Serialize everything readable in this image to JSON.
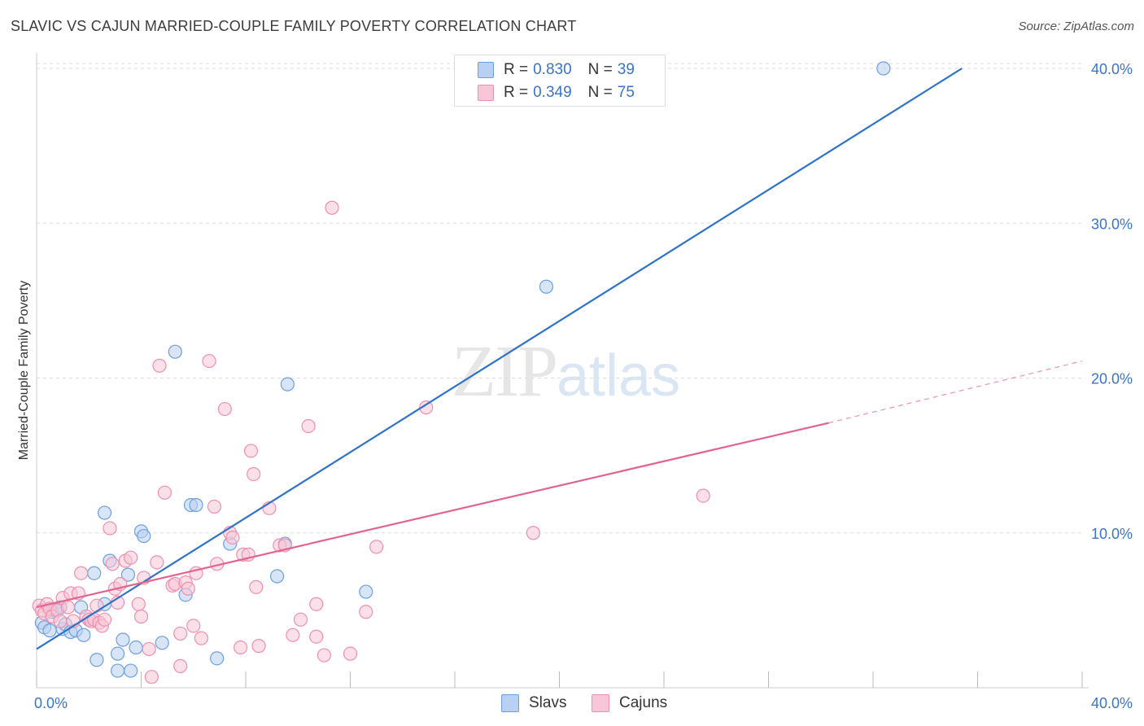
{
  "title": "SLAVIC VS CAJUN MARRIED-COUPLE FAMILY POVERTY CORRELATION CHART",
  "source": "Source: ZipAtlas.com",
  "watermark": {
    "zip": "ZIP",
    "atlas": "atlas"
  },
  "colors": {
    "slavs": "#6d9fe0",
    "slavs_fill": "#b8d0f1",
    "slavs_line": "#2f73c8",
    "cajuns": "#ef8fb0",
    "cajuns_fill": "#f8c6d6",
    "cajuns_line": "#e2648e",
    "tick_text": "#3a74c9",
    "grid": "#dddddd"
  },
  "legend": {
    "rows": [
      {
        "r_label": "R =",
        "r_value": "0.830",
        "n_label": "N =",
        "n_value": "39"
      },
      {
        "r_label": "R =",
        "r_value": "0.349",
        "n_label": "N =",
        "n_value": "75"
      }
    ]
  },
  "bottom_legend": {
    "slavs": "Slavs",
    "cajuns": "Cajuns"
  },
  "chart_data": {
    "type": "scatter",
    "title": "SLAVIC VS CAJUN MARRIED-COUPLE FAMILY POVERTY CORRELATION CHART",
    "xlabel": "",
    "ylabel": "Married-Couple Family Poverty",
    "xlim": [
      0,
      40
    ],
    "ylim": [
      0,
      41
    ],
    "x_ticks": [
      {
        "value": 0,
        "label": "0.0%"
      },
      {
        "value": 40,
        "label": "40.0%"
      }
    ],
    "y_ticks": [
      {
        "value": 10,
        "label": "10.0%"
      },
      {
        "value": 20,
        "label": "20.0%"
      },
      {
        "value": 30,
        "label": "30.0%"
      },
      {
        "value": 40,
        "label": "40.0%"
      }
    ],
    "grid": true,
    "legend_position": "top-center",
    "series": [
      {
        "name": "Slavs",
        "r": 0.83,
        "n": 39,
        "trend": {
          "x0": 0,
          "y0": 2.5,
          "x1": 35.4,
          "y1": 40.0
        },
        "points": [
          [
            0.2,
            4.2
          ],
          [
            0.3,
            3.9
          ],
          [
            0.5,
            3.7
          ],
          [
            0.6,
            4.9
          ],
          [
            0.7,
            5.0
          ],
          [
            0.9,
            5.2
          ],
          [
            1.0,
            3.8
          ],
          [
            1.1,
            4.1
          ],
          [
            1.3,
            3.6
          ],
          [
            1.5,
            3.7
          ],
          [
            1.7,
            5.2
          ],
          [
            1.8,
            3.4
          ],
          [
            2.0,
            4.4
          ],
          [
            2.2,
            7.4
          ],
          [
            2.3,
            1.8
          ],
          [
            2.6,
            11.3
          ],
          [
            2.6,
            5.4
          ],
          [
            2.8,
            8.2
          ],
          [
            3.1,
            2.2
          ],
          [
            3.1,
            1.1
          ],
          [
            3.3,
            3.1
          ],
          [
            3.5,
            7.3
          ],
          [
            3.6,
            1.1
          ],
          [
            3.8,
            2.6
          ],
          [
            4.0,
            10.1
          ],
          [
            4.1,
            9.8
          ],
          [
            4.8,
            2.9
          ],
          [
            5.3,
            21.7
          ],
          [
            5.7,
            6.0
          ],
          [
            5.9,
            11.8
          ],
          [
            6.1,
            11.8
          ],
          [
            6.9,
            1.9
          ],
          [
            7.4,
            9.3
          ],
          [
            9.2,
            7.2
          ],
          [
            9.5,
            9.3
          ],
          [
            9.6,
            19.6
          ],
          [
            12.6,
            6.2
          ],
          [
            19.5,
            25.9
          ],
          [
            32.4,
            40.0
          ]
        ]
      },
      {
        "name": "Cajuns",
        "r": 0.349,
        "n": 75,
        "trend": {
          "x0": 0,
          "y0": 5.2,
          "x1": 30.3,
          "y1": 17.1
        },
        "trend_dashed": {
          "x0": 30.3,
          "y0": 17.1,
          "x1": 40,
          "y1": 21.1
        },
        "points": [
          [
            0.1,
            5.3
          ],
          [
            0.2,
            5.0
          ],
          [
            0.3,
            4.8
          ],
          [
            0.4,
            5.4
          ],
          [
            0.5,
            5.1
          ],
          [
            0.6,
            4.6
          ],
          [
            0.8,
            5.0
          ],
          [
            0.9,
            4.3
          ],
          [
            1.0,
            5.8
          ],
          [
            1.2,
            5.2
          ],
          [
            1.3,
            6.1
          ],
          [
            1.4,
            4.3
          ],
          [
            1.6,
            6.1
          ],
          [
            1.7,
            7.4
          ],
          [
            1.9,
            4.6
          ],
          [
            2.0,
            4.4
          ],
          [
            2.1,
            4.3
          ],
          [
            2.2,
            4.4
          ],
          [
            2.3,
            5.3
          ],
          [
            2.4,
            4.2
          ],
          [
            2.5,
            4.0
          ],
          [
            2.6,
            4.4
          ],
          [
            2.8,
            10.3
          ],
          [
            2.9,
            8.0
          ],
          [
            3.0,
            6.4
          ],
          [
            3.1,
            5.5
          ],
          [
            3.2,
            6.7
          ],
          [
            3.4,
            8.2
          ],
          [
            3.6,
            8.4
          ],
          [
            3.9,
            5.4
          ],
          [
            4.0,
            4.6
          ],
          [
            4.1,
            7.1
          ],
          [
            4.3,
            2.5
          ],
          [
            4.4,
            0.7
          ],
          [
            4.6,
            8.1
          ],
          [
            4.7,
            20.8
          ],
          [
            4.9,
            12.6
          ],
          [
            5.2,
            6.6
          ],
          [
            5.3,
            6.7
          ],
          [
            5.5,
            3.5
          ],
          [
            5.5,
            1.4
          ],
          [
            5.7,
            6.8
          ],
          [
            5.8,
            6.4
          ],
          [
            6.0,
            4.0
          ],
          [
            6.1,
            7.4
          ],
          [
            6.3,
            3.2
          ],
          [
            6.6,
            21.1
          ],
          [
            6.8,
            11.7
          ],
          [
            6.9,
            8.0
          ],
          [
            7.2,
            18.0
          ],
          [
            7.4,
            10.0
          ],
          [
            7.5,
            9.7
          ],
          [
            7.8,
            2.6
          ],
          [
            7.9,
            8.6
          ],
          [
            8.1,
            8.6
          ],
          [
            8.2,
            15.3
          ],
          [
            8.3,
            13.8
          ],
          [
            8.4,
            6.5
          ],
          [
            8.5,
            2.7
          ],
          [
            8.9,
            11.6
          ],
          [
            9.3,
            9.2
          ],
          [
            9.5,
            9.2
          ],
          [
            9.8,
            3.4
          ],
          [
            10.1,
            4.4
          ],
          [
            10.4,
            16.9
          ],
          [
            10.7,
            5.4
          ],
          [
            10.7,
            3.3
          ],
          [
            11.0,
            2.1
          ],
          [
            11.3,
            31.0
          ],
          [
            12.0,
            2.2
          ],
          [
            12.6,
            4.9
          ],
          [
            13.0,
            9.1
          ],
          [
            14.9,
            18.1
          ],
          [
            19.0,
            10.0
          ],
          [
            25.5,
            12.4
          ]
        ]
      }
    ]
  }
}
